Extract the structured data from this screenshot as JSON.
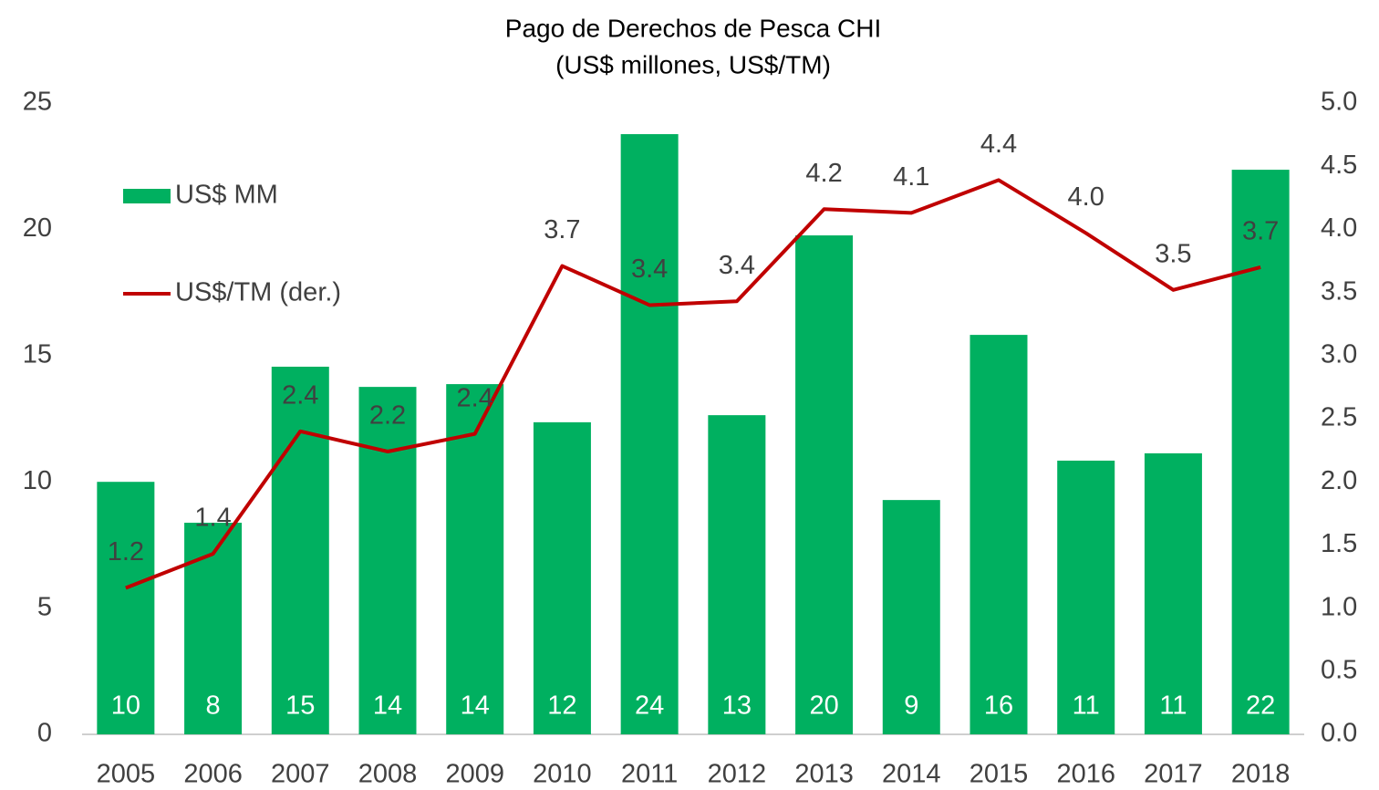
{
  "chart_data": {
    "type": "bar_line",
    "title": "Pago de Derechos de Pesca CHI",
    "subtitle": "(US$ millones, US$/TM)",
    "categories": [
      "2005",
      "2006",
      "2007",
      "2008",
      "2009",
      "2010",
      "2011",
      "2012",
      "2013",
      "2014",
      "2015",
      "2016",
      "2017",
      "2018"
    ],
    "series": [
      {
        "name": "US$ MM",
        "type": "bar",
        "color": "#00b060",
        "axis": "y",
        "values": [
          10.0,
          8.38,
          14.56,
          13.76,
          13.87,
          12.36,
          23.77,
          12.64,
          19.76,
          9.28,
          15.82,
          10.84,
          11.13,
          22.36
        ],
        "value_labels": [
          "10",
          "8",
          "15",
          "14",
          "14",
          "12",
          "24",
          "13",
          "20",
          "9",
          "16",
          "11",
          "11",
          "22"
        ]
      },
      {
        "name": "US$/TM (der.)",
        "type": "line",
        "color": "#c00000",
        "axis": "y2",
        "values": [
          1.16,
          1.43,
          2.4,
          2.24,
          2.38,
          3.71,
          3.4,
          3.43,
          4.16,
          4.13,
          4.39,
          3.97,
          3.52,
          3.7
        ],
        "value_labels": [
          "1.2",
          "1.4",
          "2.4",
          "2.2",
          "2.4",
          "3.7",
          "3.4",
          "3.4",
          "4.2",
          "4.1",
          "4.4",
          "4.0",
          "3.5",
          "3.7"
        ]
      }
    ],
    "ylim": [
      0,
      25
    ],
    "yticks": [
      0,
      5,
      10,
      15,
      20,
      25
    ],
    "y2lim": [
      0,
      5
    ],
    "y2ticks": [
      {
        "value": 0,
        "label": "0.0"
      },
      0.5,
      {
        "value": 1,
        "label": "1.0"
      },
      1.5,
      {
        "value": 2,
        "label": "2.0"
      },
      2.5,
      {
        "value": 3,
        "label": "3.0"
      },
      3.5,
      {
        "value": 4,
        "label": "4.0"
      },
      4.5,
      {
        "value": 5,
        "label": "5.0"
      }
    ],
    "grid": false,
    "legend": "upper left"
  }
}
